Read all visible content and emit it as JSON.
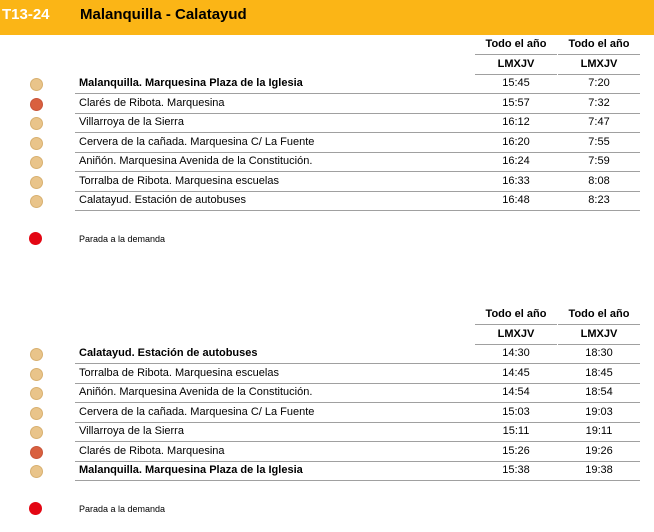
{
  "header": {
    "code": "T13-24",
    "title": "Malanquilla - Calatayud"
  },
  "tables": [
    {
      "columns": [
        {
          "period": "Todo el año",
          "days": "LMXJV"
        },
        {
          "period": "Todo el año",
          "days": "LMXJV"
        }
      ],
      "rows": [
        {
          "stop": "Malanquilla. Marquesina Plaza de la Iglesia",
          "times": [
            "15:45",
            "7:20"
          ],
          "bold": true,
          "demand": false
        },
        {
          "stop": "Clarés de Ribota. Marquesina",
          "times": [
            "15:57",
            "7:32"
          ],
          "bold": false,
          "demand": true
        },
        {
          "stop": "Villarroya de la Sierra",
          "times": [
            "16:12",
            "7:47"
          ],
          "bold": false,
          "demand": false
        },
        {
          "stop": "Cervera de la cañada. Marquesina C/ La Fuente",
          "times": [
            "16:20",
            "7:55"
          ],
          "bold": false,
          "demand": false
        },
        {
          "stop": "Aniñón. Marquesina Avenida de la Constitución.",
          "times": [
            "16:24",
            "7:59"
          ],
          "bold": false,
          "demand": false
        },
        {
          "stop": "Torralba de Ribota. Marquesina escuelas",
          "times": [
            "16:33",
            "8:08"
          ],
          "bold": false,
          "demand": false
        },
        {
          "stop": "Calatayud. Estación de autobuses",
          "times": [
            "16:48",
            "8:23"
          ],
          "bold": false,
          "demand": false
        }
      ],
      "legend": "Parada a la demanda"
    },
    {
      "columns": [
        {
          "period": "Todo el año",
          "days": "LMXJV"
        },
        {
          "period": "Todo el año",
          "days": "LMXJV"
        }
      ],
      "rows": [
        {
          "stop": "Calatayud. Estación de autobuses",
          "times": [
            "14:30",
            "18:30"
          ],
          "bold": true,
          "demand": false
        },
        {
          "stop": "Torralba de Ribota. Marquesina escuelas",
          "times": [
            "14:45",
            "18:45"
          ],
          "bold": false,
          "demand": false
        },
        {
          "stop": "Aniñón. Marquesina Avenida de la Constitución.",
          "times": [
            "14:54",
            "18:54"
          ],
          "bold": false,
          "demand": false
        },
        {
          "stop": "Cervera de la cañada. Marquesina C/ La Fuente",
          "times": [
            "15:03",
            "19:03"
          ],
          "bold": false,
          "demand": false
        },
        {
          "stop": "Villarroya de la Sierra",
          "times": [
            "15:11",
            "19:11"
          ],
          "bold": false,
          "demand": false
        },
        {
          "stop": "Clarés de Ribota. Marquesina",
          "times": [
            "15:26",
            "19:26"
          ],
          "bold": false,
          "demand": true
        },
        {
          "stop": "Malanquilla. Marquesina Plaza de la Iglesia",
          "times": [
            "15:38",
            "19:38"
          ],
          "bold": true,
          "demand": false
        }
      ],
      "legend": "Parada a la demanda"
    }
  ]
}
